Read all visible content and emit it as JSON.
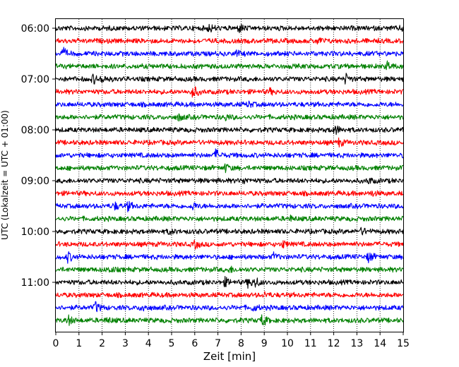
{
  "chart_data": {
    "type": "line",
    "title": "",
    "xlabel": "Zeit  [min]",
    "ylabel": "UTC (Lokalzeit = UTC + 01:00)",
    "xlim": [
      0,
      15
    ],
    "x_ticks": [
      "0",
      "1",
      "2",
      "3",
      "4",
      "5",
      "6",
      "7",
      "8",
      "9",
      "10",
      "11",
      "12",
      "13",
      "14",
      "15"
    ],
    "y_ticks": [
      "06:00",
      "07:00",
      "08:00",
      "09:00",
      "10:00",
      "11:00"
    ],
    "grid": "vertical dotted",
    "trace_colors": [
      "#000000",
      "#ff0000",
      "#0000ff",
      "#008000"
    ],
    "series": [
      {
        "start": "06:00",
        "color": "#000000",
        "events": [
          [
            6.6,
            0.9
          ],
          [
            7.9,
            1.0
          ],
          [
            14.9,
            0.6
          ]
        ]
      },
      {
        "start": "06:15",
        "color": "#ff0000",
        "events": [
          [
            11.3,
            0.7
          ]
        ]
      },
      {
        "start": "06:30",
        "color": "#0000ff",
        "events": [
          [
            0.3,
            1.1
          ],
          [
            7.8,
            0.5
          ]
        ]
      },
      {
        "start": "06:45",
        "color": "#008000",
        "events": [
          [
            14.3,
            1.0
          ]
        ]
      },
      {
        "start": "07:00",
        "color": "#000000",
        "events": [
          [
            1.6,
            1.0
          ],
          [
            2.0,
            0.9
          ],
          [
            12.5,
            1.0
          ]
        ]
      },
      {
        "start": "07:15",
        "color": "#ff0000",
        "events": [
          [
            5.9,
            1.6
          ],
          [
            9.2,
            0.6
          ]
        ]
      },
      {
        "start": "07:30",
        "color": "#0000ff",
        "events": [
          [
            8.3,
            0.6
          ]
        ]
      },
      {
        "start": "07:45",
        "color": "#008000",
        "events": [
          [
            5.3,
            0.7
          ],
          [
            7.3,
            0.6
          ]
        ]
      },
      {
        "start": "08:00",
        "color": "#000000",
        "events": [
          [
            11.9,
            0.8
          ],
          [
            12.1,
            0.6
          ]
        ]
      },
      {
        "start": "08:15",
        "color": "#ff0000",
        "events": [
          [
            12.2,
            0.8
          ]
        ]
      },
      {
        "start": "08:30",
        "color": "#0000ff",
        "events": [
          [
            6.9,
            1.2
          ]
        ]
      },
      {
        "start": "08:45",
        "color": "#008000",
        "events": [
          [
            7.3,
            0.8
          ]
        ]
      },
      {
        "start": "09:00",
        "color": "#000000",
        "events": [
          [
            8.1,
            0.6
          ],
          [
            13.5,
            0.6
          ]
        ]
      },
      {
        "start": "09:15",
        "color": "#ff0000",
        "events": [
          [
            13.6,
            0.5
          ]
        ]
      },
      {
        "start": "09:30",
        "color": "#0000ff",
        "events": [
          [
            2.5,
            0.9
          ],
          [
            3.1,
            1.0
          ],
          [
            5.9,
            0.8
          ]
        ]
      },
      {
        "start": "09:45",
        "color": "#008000",
        "events": [
          [
            10.1,
            0.5
          ]
        ]
      },
      {
        "start": "10:00",
        "color": "#000000",
        "events": [
          [
            4.9,
            0.6
          ],
          [
            13.2,
            0.7
          ]
        ]
      },
      {
        "start": "10:15",
        "color": "#ff0000",
        "events": [
          [
            6.0,
            0.8
          ],
          [
            9.8,
            0.7
          ]
        ]
      },
      {
        "start": "10:30",
        "color": "#0000ff",
        "events": [
          [
            0.5,
            1.1
          ],
          [
            9.4,
            0.7
          ],
          [
            13.5,
            1.2
          ]
        ]
      },
      {
        "start": "10:45",
        "color": "#008000",
        "events": [
          [
            2.3,
            0.6
          ],
          [
            7.5,
            0.6
          ]
        ]
      },
      {
        "start": "11:00",
        "color": "#000000",
        "events": [
          [
            7.3,
            0.9
          ],
          [
            8.3,
            1.0
          ],
          [
            8.6,
            1.0
          ]
        ]
      },
      {
        "start": "11:15",
        "color": "#ff0000",
        "events": [
          [
            9.0,
            0.5
          ]
        ]
      },
      {
        "start": "11:30",
        "color": "#0000ff",
        "events": [
          [
            1.7,
            1.2
          ],
          [
            3.7,
            0.9
          ],
          [
            8.5,
            0.7
          ]
        ]
      },
      {
        "start": "11:45",
        "color": "#008000",
        "events": [
          [
            0.5,
            1.2
          ],
          [
            8.9,
            1.3
          ],
          [
            2.2,
            0.6
          ]
        ]
      }
    ]
  }
}
